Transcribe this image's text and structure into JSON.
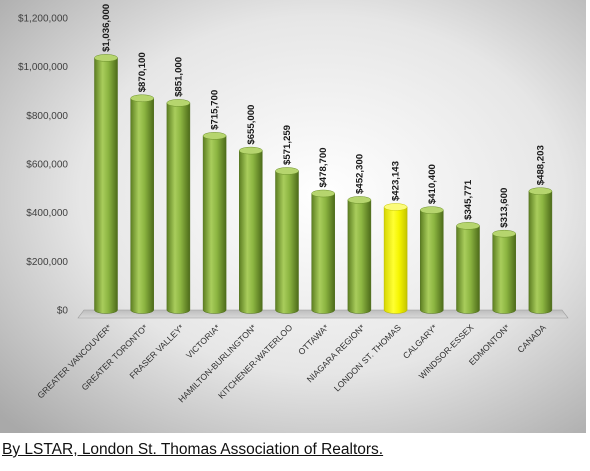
{
  "caption": "By LSTAR, London St. Thomas Association of Realtors.",
  "colors": {
    "bar_default": "#86ad3a",
    "bar_highlight": "#f2f200",
    "background_center": "#ffffff",
    "background_edge": "#a9a9a9"
  },
  "chart_data": {
    "type": "bar",
    "title": "",
    "xlabel": "",
    "ylabel": "",
    "ylim": [
      0,
      1200000
    ],
    "yticks": [
      0,
      200000,
      400000,
      600000,
      800000,
      1000000,
      1200000
    ],
    "ytick_labels": [
      "$0",
      "$200,000",
      "$400,000",
      "$600,000",
      "$800,000",
      "$1,000,000",
      "$1,200,000"
    ],
    "categories": [
      "GREATER VANCOUVER*",
      "GREATER TORONTO*",
      "FRASER VALLEY*",
      "VICTORIA*",
      "HAMILTON-BURLINGTON*",
      "KITCHENER-WATERLOO",
      "OTTAWA*",
      "NIAGARA REGION*",
      "LONDON ST. THOMAS",
      "CALGARY*",
      "WINDSOR-ESSEX",
      "EDMONTON*",
      "CANADA"
    ],
    "values": [
      1036000,
      870100,
      851000,
      715700,
      655000,
      571259,
      478700,
      452300,
      423143,
      410400,
      345771,
      313600,
      488203
    ],
    "value_labels": [
      "$1,036,000",
      "$870,100",
      "$851,000",
      "$715,700",
      "$655,000",
      "$571,259",
      "$478,700",
      "$452,300",
      "$423,143",
      "$410,400",
      "$345,771",
      "$313,600",
      "$488,203"
    ],
    "highlight_category": "LONDON ST. THOMAS",
    "grid": false,
    "legend": "none",
    "bar_style": "3d-cylinder"
  }
}
